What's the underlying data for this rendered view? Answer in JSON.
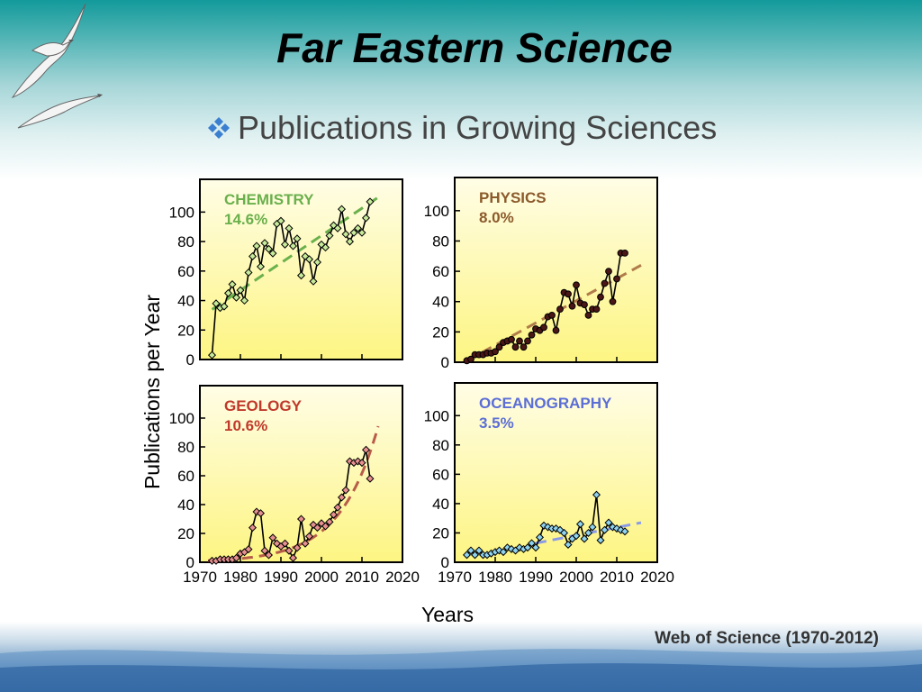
{
  "slide": {
    "title": "Far Eastern Science",
    "bullet": "Publications in Growing Sciences",
    "source": "Web of Science (1970-2012)"
  },
  "colors": {
    "bullet": "#3a7fd0",
    "panel_bg_top": "#fffde6",
    "panel_bg_bottom": "#fdf582"
  },
  "icons": {
    "bullet": "diamond-cluster-icon",
    "decoration": "seagull-icon"
  },
  "chart_data": [
    {
      "type": "line",
      "panel": "CHEMISTRY",
      "title": "CHEMISTRY",
      "subtitle": "14.6%",
      "label_color": "#6ab04c",
      "marker_fill": "#c7ea9b",
      "trend_color": "#6ab04c",
      "trend": [
        [
          1973,
          34
        ],
        [
          2014,
          110
        ]
      ],
      "x": [
        1973,
        1974,
        1975,
        1976,
        1977,
        1978,
        1979,
        1980,
        1981,
        1982,
        1983,
        1984,
        1985,
        1986,
        1987,
        1988,
        1989,
        1990,
        1991,
        1992,
        1993,
        1994,
        1995,
        1996,
        1997,
        1998,
        1999,
        2000,
        2001,
        2002,
        2003,
        2004,
        2005,
        2006,
        2007,
        2008,
        2009,
        2010,
        2011,
        2012
      ],
      "y": [
        3,
        38,
        35,
        36,
        45,
        51,
        42,
        47,
        40,
        59,
        70,
        77,
        63,
        79,
        75,
        72,
        92,
        94,
        78,
        89,
        77,
        82,
        57,
        70,
        68,
        53,
        66,
        78,
        76,
        84,
        91,
        89,
        102,
        85,
        80,
        86,
        89,
        86,
        96,
        107
      ],
      "xlim": [
        1970,
        2020
      ],
      "ylim": [
        0,
        110
      ],
      "yticks": [
        0,
        20,
        40,
        60,
        80,
        100
      ]
    },
    {
      "type": "line",
      "panel": "PHYSICS",
      "title": "PHYSICS",
      "subtitle": "8.0%",
      "label_color": "#8b5a2b",
      "marker_fill": "#4a1616",
      "trend_color": "#b07c4a",
      "trend": [
        [
          1973,
          1
        ],
        [
          2016,
          64
        ]
      ],
      "x": [
        1973,
        1974,
        1975,
        1976,
        1977,
        1978,
        1979,
        1980,
        1981,
        1982,
        1983,
        1984,
        1985,
        1986,
        1987,
        1988,
        1989,
        1990,
        1991,
        1992,
        1993,
        1994,
        1995,
        1996,
        1997,
        1998,
        1999,
        2000,
        2001,
        2002,
        2003,
        2004,
        2005,
        2006,
        2007,
        2008,
        2009,
        2010,
        2011,
        2012
      ],
      "y": [
        1,
        2,
        5,
        5,
        5,
        6,
        6,
        7,
        10,
        13,
        14,
        15,
        10,
        14,
        10,
        14,
        18,
        22,
        21,
        23,
        30,
        31,
        21,
        35,
        46,
        45,
        37,
        51,
        39,
        38,
        31,
        35,
        35,
        43,
        52,
        60,
        40,
        55,
        72,
        72
      ],
      "xlim": [
        1970,
        2020
      ],
      "ylim": [
        0,
        110
      ],
      "yticks": [
        0,
        20,
        40,
        60,
        80,
        100
      ]
    },
    {
      "type": "line",
      "panel": "GEOLOGY",
      "title": "GEOLOGY",
      "subtitle": "10.6%",
      "label_color": "#c0392b",
      "marker_fill": "#e89090",
      "trend_color": "#b85c4a",
      "trend_curve": {
        "base_year": 1972,
        "start_value": 1.1,
        "growth_rate": 0.106,
        "end_year": 2014
      },
      "x": [
        1973,
        1974,
        1975,
        1976,
        1977,
        1978,
        1979,
        1980,
        1981,
        1982,
        1983,
        1984,
        1985,
        1986,
        1987,
        1988,
        1989,
        1990,
        1991,
        1992,
        1993,
        1994,
        1995,
        1996,
        1997,
        1998,
        1999,
        2000,
        2001,
        2002,
        2003,
        2004,
        2005,
        2006,
        2007,
        2008,
        2009,
        2010,
        2011,
        2012
      ],
      "y": [
        1,
        1,
        2,
        2,
        2,
        2,
        3,
        6,
        7,
        9,
        24,
        35,
        34,
        8,
        5,
        17,
        13,
        11,
        13,
        8,
        3,
        10,
        30,
        13,
        18,
        26,
        24,
        27,
        25,
        28,
        33,
        38,
        45,
        50,
        70,
        69,
        70,
        69,
        78,
        58
      ],
      "xlim": [
        1970,
        2020
      ],
      "ylim": [
        0,
        110
      ],
      "yticks": [
        0,
        20,
        40,
        60,
        80,
        100
      ]
    },
    {
      "type": "line",
      "panel": "OCEANOGRAPHY",
      "title": "OCEANOGRAPHY",
      "subtitle": "3.5%",
      "label_color": "#5b6ed6",
      "marker_fill": "#8fd3f0",
      "trend_color": "#8c9be6",
      "trend": [
        [
          1990,
          13
        ],
        [
          2016,
          27
        ]
      ],
      "x": [
        1973,
        1974,
        1975,
        1976,
        1977,
        1978,
        1979,
        1980,
        1981,
        1982,
        1983,
        1984,
        1985,
        1986,
        1987,
        1988,
        1989,
        1990,
        1991,
        1992,
        1993,
        1994,
        1995,
        1996,
        1997,
        1998,
        1999,
        2000,
        2001,
        2002,
        2003,
        2004,
        2005,
        2006,
        2007,
        2008,
        2009,
        2010,
        2011,
        2012
      ],
      "y": [
        5,
        8,
        5,
        8,
        5,
        5,
        6,
        7,
        8,
        7,
        10,
        9,
        8,
        10,
        9,
        10,
        13,
        10,
        17,
        25,
        24,
        23,
        23,
        22,
        20,
        12,
        16,
        18,
        26,
        16,
        20,
        24,
        46,
        15,
        22,
        27,
        24,
        23,
        22,
        21
      ],
      "xlim": [
        1970,
        2020
      ],
      "ylim": [
        0,
        110
      ],
      "yticks": [
        0,
        20,
        40,
        60,
        80,
        100
      ]
    }
  ],
  "axes": {
    "ylabel": "Publications per Year",
    "xlabel": "Years",
    "xticks": [
      1970,
      1980,
      1990,
      2000,
      2010,
      2020
    ]
  }
}
